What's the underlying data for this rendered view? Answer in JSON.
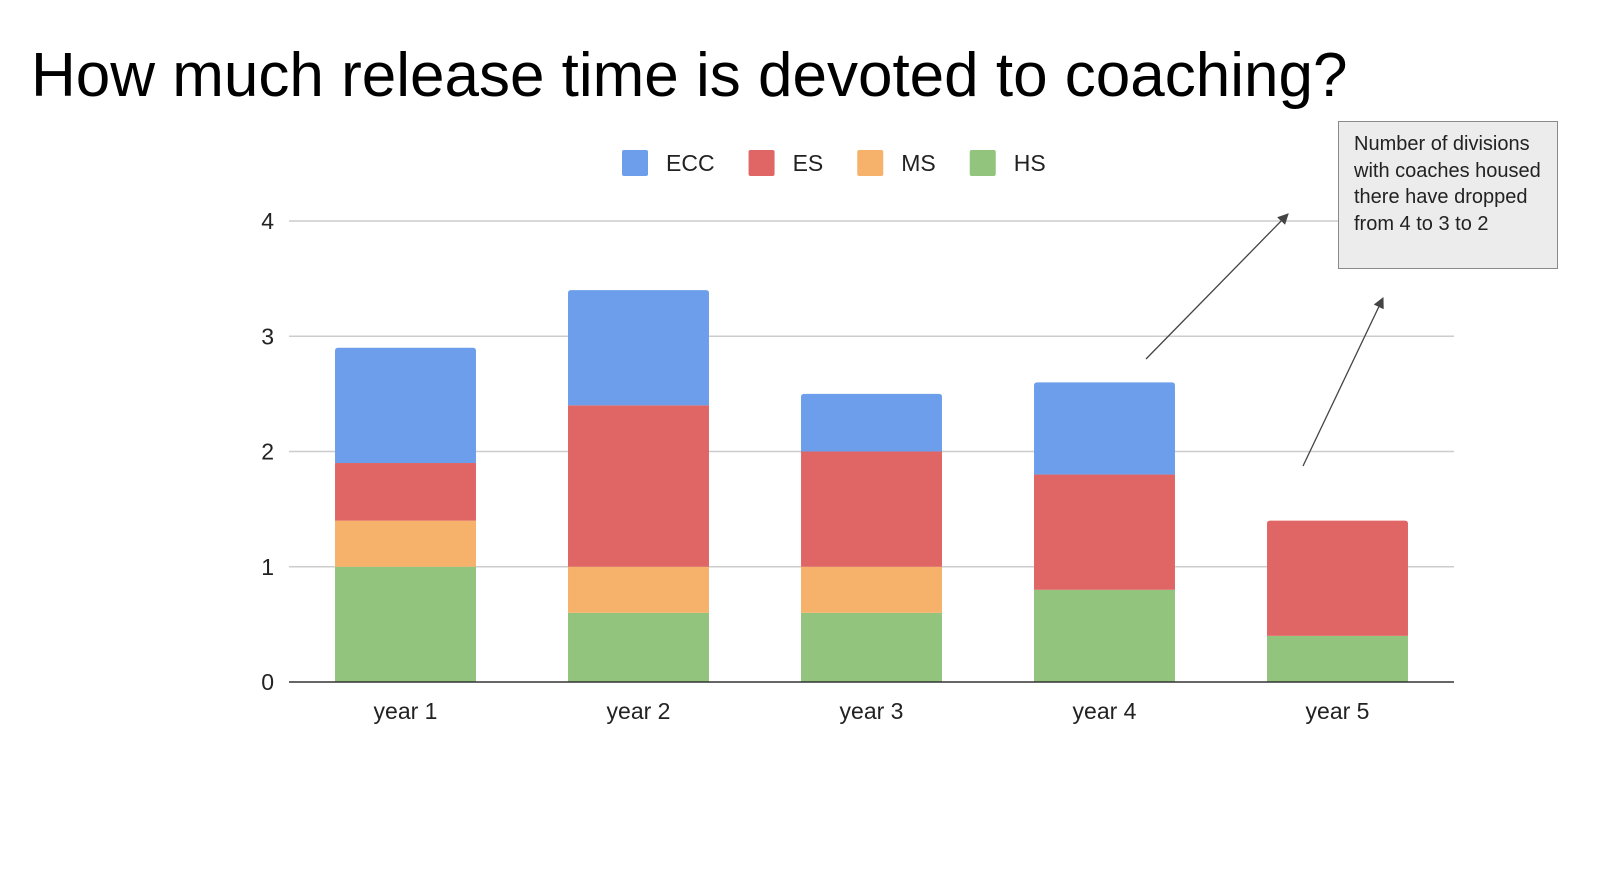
{
  "title": "How much release time is devoted to coaching?",
  "annotation": "Number of divisions with coaches housed there have dropped from 4 to 3 to 2",
  "colors": {
    "ECC": "#6d9eeb",
    "ES": "#e06666",
    "MS": "#f6b26b",
    "HS": "#93c47d",
    "grid": "#cccccc",
    "axis": "#333333",
    "text": "#222222"
  },
  "chart_data": {
    "type": "bar",
    "stacked": true,
    "title": "",
    "xlabel": "",
    "ylabel": "",
    "categories": [
      "year 1",
      "year 2",
      "year 3",
      "year 4",
      "year 5"
    ],
    "series": [
      {
        "name": "HS",
        "values": [
          1.0,
          0.6,
          0.6,
          0.8,
          0.4
        ]
      },
      {
        "name": "MS",
        "values": [
          0.4,
          0.4,
          0.4,
          0,
          0
        ]
      },
      {
        "name": "ES",
        "values": [
          0.5,
          1.4,
          1.0,
          1.0,
          1.0
        ]
      },
      {
        "name": "ECC",
        "values": [
          1.0,
          1.0,
          0.5,
          0.8,
          0
        ]
      }
    ],
    "legend_order": [
      "ECC",
      "ES",
      "MS",
      "HS"
    ],
    "legend_position": "top",
    "ylim": [
      0,
      4
    ],
    "yticks": [
      "0",
      "1",
      "2",
      "3",
      "4"
    ],
    "grid": true
  }
}
